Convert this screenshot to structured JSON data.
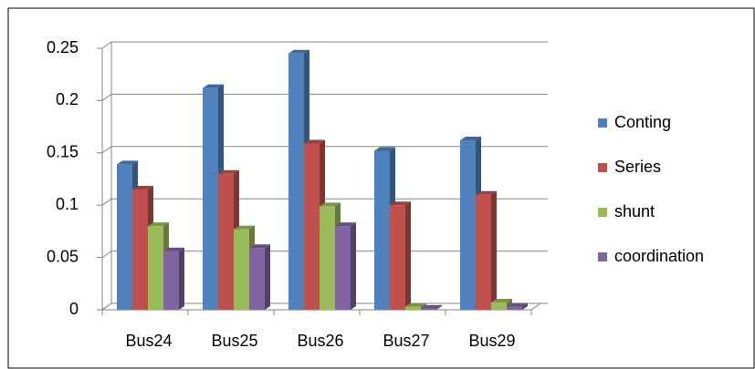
{
  "chart_data": {
    "type": "bar3d",
    "categories": [
      "Bus24",
      "Bus25",
      "Bus26",
      "Bus27",
      "Bus29"
    ],
    "series": [
      {
        "name": "Conting",
        "color": "#4f81bd",
        "values": [
          0.139,
          0.212,
          0.245,
          0.152,
          0.162
        ]
      },
      {
        "name": "Series",
        "color": "#c0504d",
        "values": [
          0.115,
          0.13,
          0.159,
          0.1,
          0.11
        ]
      },
      {
        "name": "shunt",
        "color": "#9bbb59",
        "values": [
          0.08,
          0.077,
          0.099,
          0.003,
          0.007
        ]
      },
      {
        "name": "coordination",
        "color": "#8064a2",
        "values": [
          0.056,
          0.059,
          0.08,
          0.001,
          0.003
        ]
      }
    ],
    "ylim": [
      0,
      0.25
    ],
    "yticks": [
      0,
      0.05,
      0.1,
      0.15,
      0.2,
      0.25
    ],
    "grid": true,
    "legend": "right"
  }
}
